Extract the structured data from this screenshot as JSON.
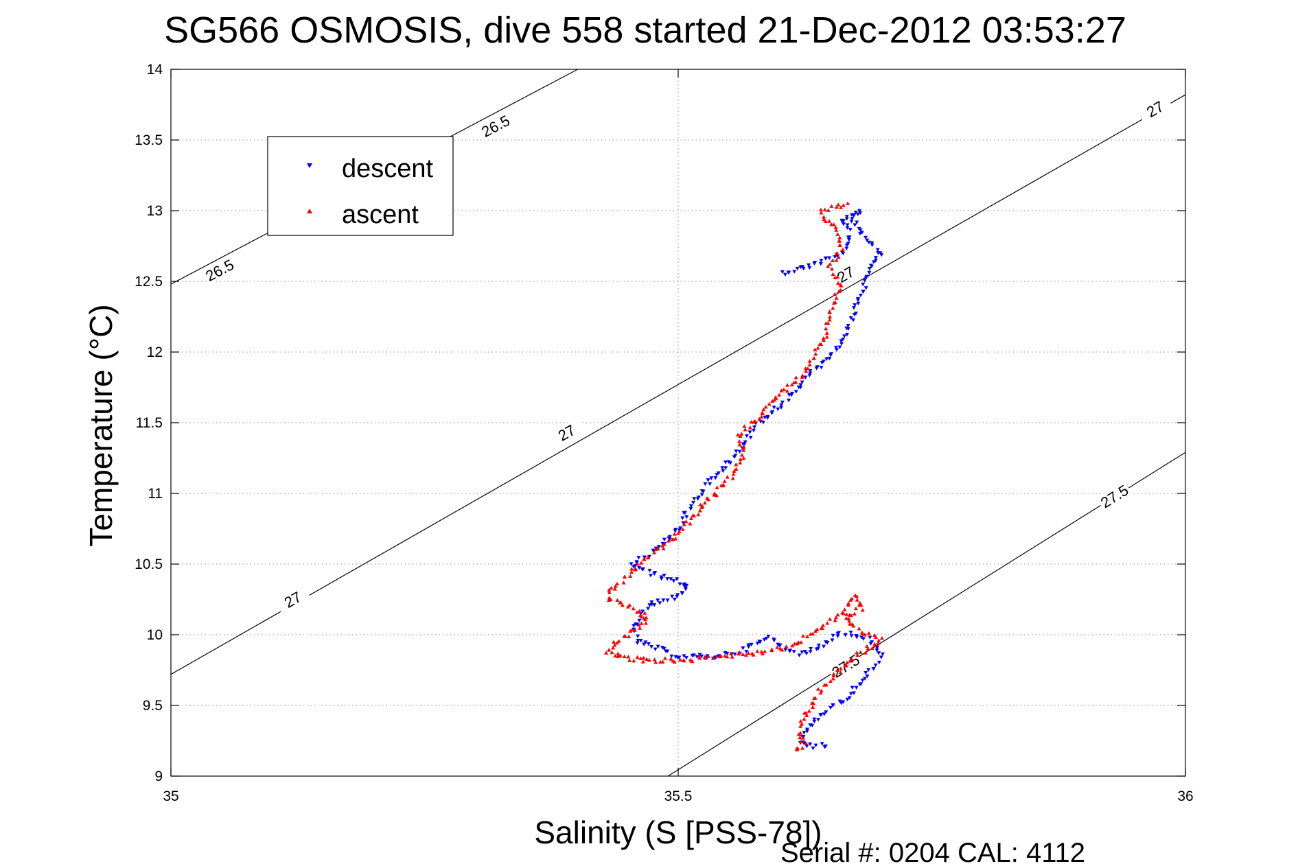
{
  "chart_data": {
    "type": "scatter",
    "title": "SG566 OSMOSIS, dive 558 started 21-Dec-2012 03:53:27",
    "xlabel": "Salinity (S [PSS-78])",
    "ylabel": "Temperature (°C)",
    "footer": "Serial #: 0204  CAL: 4112",
    "xlim": [
      35,
      36
    ],
    "ylim": [
      9,
      14
    ],
    "xticks": [
      35,
      35.5,
      36
    ],
    "xtick_labels": [
      "35",
      "35.5",
      "36"
    ],
    "yticks": [
      9,
      9.5,
      10,
      10.5,
      11,
      11.5,
      12,
      12.5,
      13,
      13.5,
      14
    ],
    "ytick_labels": [
      "9",
      "9.5",
      "10",
      "10.5",
      "11",
      "11.5",
      "12",
      "12.5",
      "13",
      "13.5",
      "14"
    ],
    "grid": true,
    "legend": {
      "position": "top-left",
      "entries": [
        "descent",
        "ascent"
      ]
    },
    "series": [
      {
        "name": "descent",
        "color": "#0000ff",
        "marker": "triangle-down",
        "path": [
          [
            35.602,
            12.56
          ],
          [
            35.625,
            12.6
          ],
          [
            35.655,
            12.68
          ],
          [
            35.665,
            12.72
          ],
          [
            35.67,
            12.85
          ],
          [
            35.66,
            12.93
          ],
          [
            35.68,
            13.0
          ],
          [
            35.67,
            12.95
          ],
          [
            35.685,
            12.82
          ],
          [
            35.7,
            12.7
          ],
          [
            35.69,
            12.62
          ],
          [
            35.685,
            12.5
          ],
          [
            35.675,
            12.3
          ],
          [
            35.665,
            12.12
          ],
          [
            35.655,
            12.0
          ],
          [
            35.63,
            11.85
          ],
          [
            35.605,
            11.65
          ],
          [
            35.58,
            11.5
          ],
          [
            35.56,
            11.3
          ],
          [
            35.54,
            11.15
          ],
          [
            35.515,
            10.95
          ],
          [
            35.5,
            10.75
          ],
          [
            35.48,
            10.6
          ],
          [
            35.455,
            10.5
          ],
          [
            35.47,
            10.44
          ],
          [
            35.49,
            10.4
          ],
          [
            35.51,
            10.35
          ],
          [
            35.5,
            10.28
          ],
          [
            35.47,
            10.2
          ],
          [
            35.455,
            10.05
          ],
          [
            35.46,
            9.95
          ],
          [
            35.48,
            9.9
          ],
          [
            35.5,
            9.85
          ],
          [
            35.53,
            9.84
          ],
          [
            35.56,
            9.88
          ],
          [
            35.59,
            9.98
          ],
          [
            35.6,
            9.93
          ],
          [
            35.62,
            9.86
          ],
          [
            35.64,
            9.92
          ],
          [
            35.66,
            10.02
          ],
          [
            35.69,
            9.96
          ],
          [
            35.7,
            9.85
          ],
          [
            35.685,
            9.7
          ],
          [
            35.665,
            9.55
          ],
          [
            35.645,
            9.45
          ],
          [
            35.63,
            9.35
          ],
          [
            35.62,
            9.25
          ],
          [
            35.635,
            9.21
          ],
          [
            35.65,
            9.22
          ]
        ]
      },
      {
        "name": "ascent",
        "color": "#ff0000",
        "marker": "triangle-up",
        "path": [
          [
            35.615,
            9.18
          ],
          [
            35.625,
            9.22
          ],
          [
            35.618,
            9.3
          ],
          [
            35.628,
            9.45
          ],
          [
            35.64,
            9.6
          ],
          [
            35.655,
            9.72
          ],
          [
            35.67,
            9.82
          ],
          [
            35.69,
            9.92
          ],
          [
            35.7,
            9.96
          ],
          [
            35.675,
            10.05
          ],
          [
            35.665,
            10.12
          ],
          [
            35.68,
            10.18
          ],
          [
            35.675,
            10.28
          ],
          [
            35.66,
            10.15
          ],
          [
            35.64,
            10.05
          ],
          [
            35.62,
            9.95
          ],
          [
            35.6,
            9.9
          ],
          [
            35.575,
            9.87
          ],
          [
            35.54,
            9.85
          ],
          [
            35.51,
            9.82
          ],
          [
            35.48,
            9.82
          ],
          [
            35.45,
            9.83
          ],
          [
            35.43,
            9.88
          ],
          [
            35.44,
            9.95
          ],
          [
            35.46,
            10.05
          ],
          [
            35.47,
            10.12
          ],
          [
            35.45,
            10.2
          ],
          [
            35.43,
            10.27
          ],
          [
            35.44,
            10.35
          ],
          [
            35.455,
            10.45
          ],
          [
            35.47,
            10.55
          ],
          [
            35.49,
            10.65
          ],
          [
            35.51,
            10.8
          ],
          [
            35.53,
            10.95
          ],
          [
            35.55,
            11.1
          ],
          [
            35.565,
            11.25
          ],
          [
            35.56,
            11.42
          ],
          [
            35.58,
            11.55
          ],
          [
            35.6,
            11.7
          ],
          [
            35.625,
            11.85
          ],
          [
            35.635,
            12.0
          ],
          [
            35.645,
            12.12
          ],
          [
            35.65,
            12.3
          ],
          [
            35.66,
            12.48
          ],
          [
            35.65,
            12.6
          ],
          [
            35.66,
            12.72
          ],
          [
            35.655,
            12.88
          ],
          [
            35.64,
            12.98
          ],
          [
            35.655,
            13.03
          ],
          [
            35.67,
            13.05
          ]
        ]
      }
    ],
    "contours": [
      {
        "label": "26.5",
        "points": [
          [
            35.0,
            12.48
          ],
          [
            35.401,
            14.0
          ]
        ],
        "label_at": [
          [
            35.048,
            12.58
          ],
          [
            35.32,
            13.6
          ]
        ]
      },
      {
        "label": "27",
        "points": [
          [
            35.0,
            9.72
          ],
          [
            36.0,
            13.82
          ]
        ],
        "label_at": [
          [
            35.12,
            10.25
          ],
          [
            35.39,
            11.43
          ],
          [
            35.665,
            12.55
          ],
          [
            35.97,
            13.72
          ]
        ]
      },
      {
        "label": "27.5",
        "points": [
          [
            35.49,
            9.0
          ],
          [
            36.0,
            11.29
          ]
        ],
        "label_at": [
          [
            35.665,
            9.78
          ],
          [
            35.93,
            10.98
          ]
        ]
      }
    ]
  }
}
